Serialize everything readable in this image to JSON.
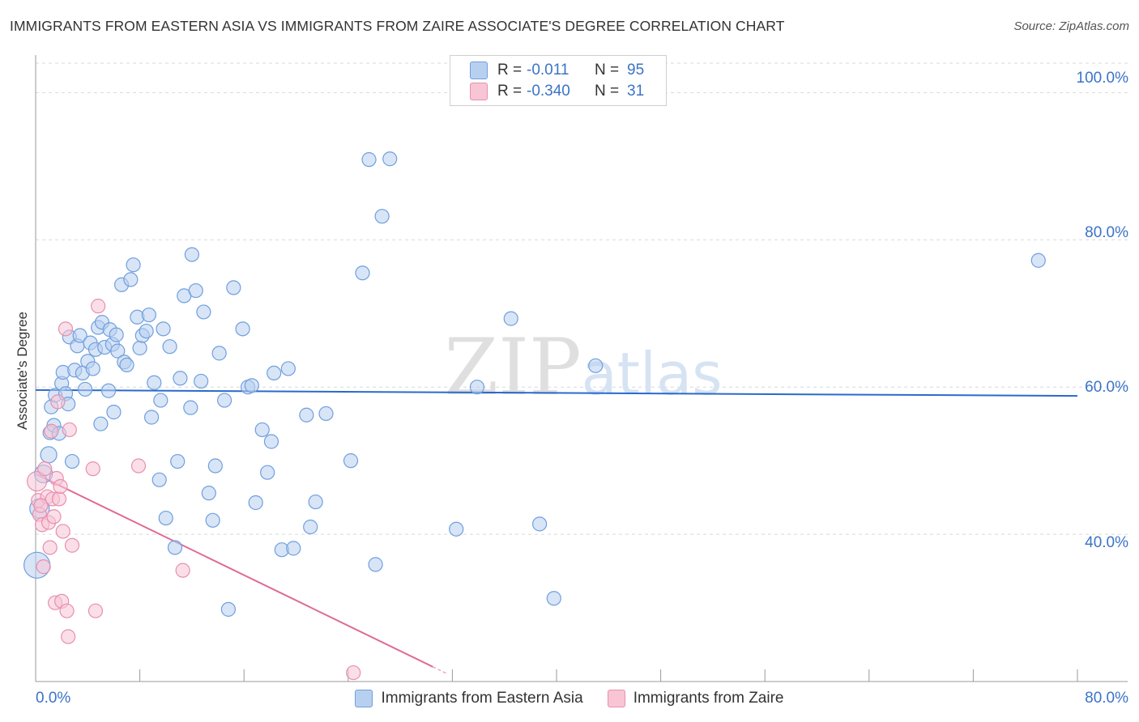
{
  "chart_data": {
    "type": "scatter",
    "title": "IMMIGRANTS FROM EASTERN ASIA VS IMMIGRANTS FROM ZAIRE ASSOCIATE'S DEGREE CORRELATION CHART",
    "source": "Source: ZipAtlas.com",
    "ylabel": "Associate's Degree",
    "xlabel": "",
    "xlim": [
      0,
      80
    ],
    "ylim": [
      20,
      104
    ],
    "x_tick_labels": [
      "0.0%",
      "80.0%"
    ],
    "y_ticks": [
      40,
      60,
      80,
      100
    ],
    "y_tick_labels": [
      "40.0%",
      "60.0%",
      "80.0%",
      "100.0%"
    ],
    "watermark": "ZIPatlas",
    "legend_position": "top-center",
    "stats": [
      {
        "r_label": "R =",
        "r": "-0.011",
        "n_label": "N =",
        "n": "95"
      },
      {
        "r_label": "R =",
        "r": "-0.340",
        "n_label": "N =",
        "n": "31"
      }
    ],
    "series": [
      {
        "name": "Immigrants from Eastern Asia",
        "color": "#6f9fde",
        "fill": "#b8d0f0",
        "trend": {
          "x": [
            0,
            80
          ],
          "y": [
            59.6,
            58.8
          ],
          "color": "#2a6acb"
        },
        "points": [
          {
            "x": 0.1,
            "y": 35.8,
            "r": 16
          },
          {
            "x": 0.3,
            "y": 43.5,
            "r": 12
          },
          {
            "x": 0.6,
            "y": 48.2,
            "r": 11
          },
          {
            "x": 1.0,
            "y": 50.8,
            "r": 10
          },
          {
            "x": 1.1,
            "y": 53.8
          },
          {
            "x": 1.2,
            "y": 57.3
          },
          {
            "x": 1.4,
            "y": 54.8
          },
          {
            "x": 1.5,
            "y": 58.9
          },
          {
            "x": 1.8,
            "y": 53.7
          },
          {
            "x": 2.0,
            "y": 60.5
          },
          {
            "x": 2.1,
            "y": 62.0
          },
          {
            "x": 2.3,
            "y": 59.1
          },
          {
            "x": 2.5,
            "y": 57.7
          },
          {
            "x": 2.6,
            "y": 66.8
          },
          {
            "x": 2.8,
            "y": 49.9
          },
          {
            "x": 3.0,
            "y": 62.3
          },
          {
            "x": 3.2,
            "y": 65.6
          },
          {
            "x": 3.4,
            "y": 67.0
          },
          {
            "x": 3.6,
            "y": 61.9
          },
          {
            "x": 3.8,
            "y": 59.7
          },
          {
            "x": 4.0,
            "y": 63.5
          },
          {
            "x": 4.2,
            "y": 66.0
          },
          {
            "x": 4.4,
            "y": 62.5
          },
          {
            "x": 4.6,
            "y": 65.1
          },
          {
            "x": 4.8,
            "y": 68.1
          },
          {
            "x": 5.0,
            "y": 55.0
          },
          {
            "x": 5.1,
            "y": 68.8
          },
          {
            "x": 5.3,
            "y": 65.4
          },
          {
            "x": 5.6,
            "y": 59.5
          },
          {
            "x": 5.7,
            "y": 67.8
          },
          {
            "x": 5.9,
            "y": 65.8
          },
          {
            "x": 6.0,
            "y": 56.6
          },
          {
            "x": 6.2,
            "y": 67.1
          },
          {
            "x": 6.3,
            "y": 64.9
          },
          {
            "x": 6.6,
            "y": 73.9
          },
          {
            "x": 6.8,
            "y": 63.4
          },
          {
            "x": 7.0,
            "y": 63.0
          },
          {
            "x": 7.3,
            "y": 74.6
          },
          {
            "x": 7.5,
            "y": 76.6
          },
          {
            "x": 7.8,
            "y": 69.5
          },
          {
            "x": 8.0,
            "y": 65.3
          },
          {
            "x": 8.2,
            "y": 67.0
          },
          {
            "x": 8.5,
            "y": 67.6
          },
          {
            "x": 8.7,
            "y": 69.8
          },
          {
            "x": 8.9,
            "y": 55.9
          },
          {
            "x": 9.1,
            "y": 60.6
          },
          {
            "x": 9.5,
            "y": 47.4
          },
          {
            "x": 9.6,
            "y": 58.2
          },
          {
            "x": 9.8,
            "y": 67.9
          },
          {
            "x": 10.0,
            "y": 42.2
          },
          {
            "x": 10.3,
            "y": 65.5
          },
          {
            "x": 10.7,
            "y": 38.2
          },
          {
            "x": 10.9,
            "y": 49.9
          },
          {
            "x": 11.1,
            "y": 61.2
          },
          {
            "x": 11.4,
            "y": 72.4
          },
          {
            "x": 11.9,
            "y": 57.2
          },
          {
            "x": 12.0,
            "y": 78.0
          },
          {
            "x": 12.3,
            "y": 73.1
          },
          {
            "x": 12.7,
            "y": 60.8
          },
          {
            "x": 12.9,
            "y": 70.2
          },
          {
            "x": 13.3,
            "y": 45.6
          },
          {
            "x": 13.6,
            "y": 41.9
          },
          {
            "x": 13.8,
            "y": 49.3
          },
          {
            "x": 14.1,
            "y": 64.6
          },
          {
            "x": 14.5,
            "y": 58.2
          },
          {
            "x": 14.8,
            "y": 29.8
          },
          {
            "x": 15.2,
            "y": 73.5
          },
          {
            "x": 15.9,
            "y": 67.9
          },
          {
            "x": 16.3,
            "y": 60.0
          },
          {
            "x": 16.6,
            "y": 60.2
          },
          {
            "x": 16.9,
            "y": 44.3
          },
          {
            "x": 17.4,
            "y": 54.2
          },
          {
            "x": 17.8,
            "y": 48.4
          },
          {
            "x": 18.1,
            "y": 52.6
          },
          {
            "x": 18.3,
            "y": 61.9
          },
          {
            "x": 18.9,
            "y": 37.9
          },
          {
            "x": 19.4,
            "y": 62.5
          },
          {
            "x": 19.8,
            "y": 38.1
          },
          {
            "x": 20.8,
            "y": 56.2
          },
          {
            "x": 21.1,
            "y": 41.0
          },
          {
            "x": 21.5,
            "y": 44.4
          },
          {
            "x": 22.3,
            "y": 56.4
          },
          {
            "x": 24.2,
            "y": 50.0
          },
          {
            "x": 25.1,
            "y": 75.5
          },
          {
            "x": 25.6,
            "y": 90.9
          },
          {
            "x": 26.1,
            "y": 35.9
          },
          {
            "x": 26.6,
            "y": 83.2
          },
          {
            "x": 27.2,
            "y": 91.0
          },
          {
            "x": 32.3,
            "y": 40.7
          },
          {
            "x": 33.9,
            "y": 60.0
          },
          {
            "x": 36.5,
            "y": 69.3
          },
          {
            "x": 38.7,
            "y": 41.4
          },
          {
            "x": 39.8,
            "y": 31.3
          },
          {
            "x": 43.0,
            "y": 62.9
          },
          {
            "x": 77.0,
            "y": 77.2
          }
        ]
      },
      {
        "name": "Immigrants from Zaire",
        "color": "#e88fae",
        "fill": "#f8c5d5",
        "trend": {
          "x": [
            0,
            30.5
          ],
          "y": 48.2,
          "y_end": 22.0,
          "color": "#e06a97",
          "dash_to_x": 31.6
        },
        "points": [
          {
            "x": 0.1,
            "y": 47.2,
            "r": 12
          },
          {
            "x": 0.2,
            "y": 44.6
          },
          {
            "x": 0.3,
            "y": 42.7
          },
          {
            "x": 0.5,
            "y": 41.3
          },
          {
            "x": 0.6,
            "y": 35.6
          },
          {
            "x": 0.7,
            "y": 48.9
          },
          {
            "x": 0.9,
            "y": 45.1
          },
          {
            "x": 1.0,
            "y": 41.6
          },
          {
            "x": 1.1,
            "y": 38.2
          },
          {
            "x": 1.2,
            "y": 54.0
          },
          {
            "x": 1.3,
            "y": 44.8
          },
          {
            "x": 1.4,
            "y": 42.4
          },
          {
            "x": 1.5,
            "y": 30.7
          },
          {
            "x": 1.6,
            "y": 47.6
          },
          {
            "x": 1.7,
            "y": 58.0
          },
          {
            "x": 1.8,
            "y": 44.8
          },
          {
            "x": 1.9,
            "y": 46.5
          },
          {
            "x": 2.0,
            "y": 30.9
          },
          {
            "x": 2.1,
            "y": 40.4
          },
          {
            "x": 2.3,
            "y": 67.9
          },
          {
            "x": 2.4,
            "y": 29.6
          },
          {
            "x": 2.5,
            "y": 26.1
          },
          {
            "x": 2.6,
            "y": 54.2
          },
          {
            "x": 2.8,
            "y": 38.5
          },
          {
            "x": 4.4,
            "y": 48.9
          },
          {
            "x": 4.6,
            "y": 29.6
          },
          {
            "x": 4.8,
            "y": 71.0
          },
          {
            "x": 7.9,
            "y": 49.3
          },
          {
            "x": 11.3,
            "y": 35.1
          },
          {
            "x": 24.4,
            "y": 21.2
          },
          {
            "x": 0.4,
            "y": 43.9
          }
        ]
      }
    ]
  },
  "legend": {
    "items": [
      {
        "label": "Immigrants from Eastern Asia"
      },
      {
        "label": "Immigrants from Zaire"
      }
    ]
  }
}
